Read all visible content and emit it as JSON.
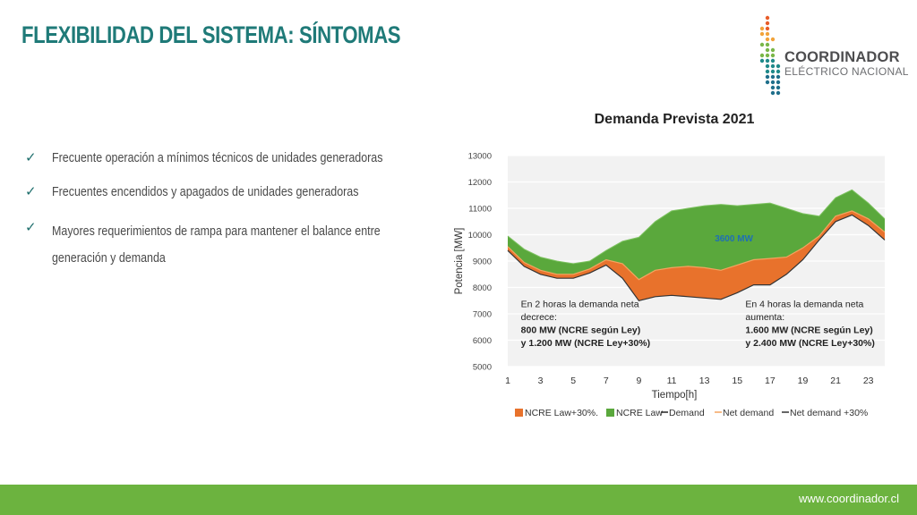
{
  "slide": {
    "title": "FLEXIBILIDAD DEL SISTEMA: SÍNTOMAS",
    "footer_url": "www.coordinador.cl"
  },
  "logo": {
    "line1": "COORDINADOR",
    "line2": "ELÉCTRICO NACIONAL",
    "colors": [
      "#e85d2a",
      "#f2a33a",
      "#7ab648",
      "#1f8a8a",
      "#1f6f8b"
    ]
  },
  "bullets": [
    {
      "icon": "check-icon",
      "text": "Frecuente operación a mínimos técnicos de unidades generadoras"
    },
    {
      "icon": "check-icon",
      "text": "Frecuentes encendidos y apagados de unidades generadoras"
    },
    {
      "icon": "check-icon",
      "text": "Mayores requerimientos de rampa para mantener el balance entre generación y demanda"
    }
  ],
  "chart_data": {
    "type": "area",
    "title": "Demanda Prevista 2021",
    "xlabel": "Tiempo[h]",
    "ylabel": "Potencia [MW]",
    "ylim": [
      5000,
      13000
    ],
    "xlim": [
      1,
      24
    ],
    "yticks": [
      5000,
      6000,
      7000,
      8000,
      9000,
      10000,
      11000,
      12000,
      13000
    ],
    "xticks": [
      1,
      3,
      5,
      7,
      9,
      11,
      13,
      15,
      17,
      19,
      21,
      23
    ],
    "grid": true,
    "legend_position": "bottom",
    "x": [
      1,
      2,
      3,
      4,
      5,
      6,
      7,
      8,
      9,
      10,
      11,
      12,
      13,
      14,
      15,
      16,
      17,
      18,
      19,
      20,
      21,
      22,
      23,
      24
    ],
    "series": [
      {
        "name": "Demand",
        "color": "#222222",
        "values": [
          9950,
          9450,
          9150,
          9000,
          8900,
          9000,
          9400,
          9750,
          9900,
          10500,
          10900,
          11000,
          11100,
          11150,
          11100,
          11150,
          11200,
          11000,
          10800,
          10700,
          11400,
          11700,
          11200,
          10600
        ]
      },
      {
        "name": "Net demand",
        "color": "#f4a460",
        "values": [
          9550,
          8950,
          8650,
          8500,
          8500,
          8700,
          9050,
          8900,
          8300,
          8650,
          8750,
          8800,
          8750,
          8650,
          8850,
          9050,
          9100,
          9150,
          9500,
          9950,
          10700,
          10900,
          10600,
          10100
        ]
      },
      {
        "name": "Net demand +30%",
        "color": "#333333",
        "values": [
          9400,
          8800,
          8500,
          8350,
          8350,
          8550,
          8850,
          8350,
          7500,
          7650,
          7700,
          7650,
          7600,
          7550,
          7800,
          8100,
          8100,
          8500,
          9050,
          9800,
          10500,
          10750,
          10350,
          9800
        ]
      },
      {
        "name": "NCRE Law+30%.",
        "color": "#e8722c",
        "kind": "band-between-net-and-net30"
      },
      {
        "name": "NCRE Law",
        "color": "#5aa83c",
        "kind": "band-between-demand-and-net"
      }
    ],
    "annotations": [
      {
        "text": "3600 MW",
        "x": 14.8,
        "y": 9750,
        "color": "#1f6fb4",
        "bold": true
      },
      {
        "lines": [
          "En 2 horas la demanda neta",
          "decrece:",
          "800 MW (NCRE según Ley)",
          "y  1.200 MW (NCRE Ley+30%)"
        ],
        "x": 1.8,
        "y": 7250
      },
      {
        "lines": [
          "En 4 horas la demanda neta",
          "aumenta:",
          "1.600 MW  (NCRE según Ley)",
          "y 2.400 MW  (NCRE Ley+30%)"
        ],
        "x": 15.5,
        "y": 7250
      }
    ]
  }
}
